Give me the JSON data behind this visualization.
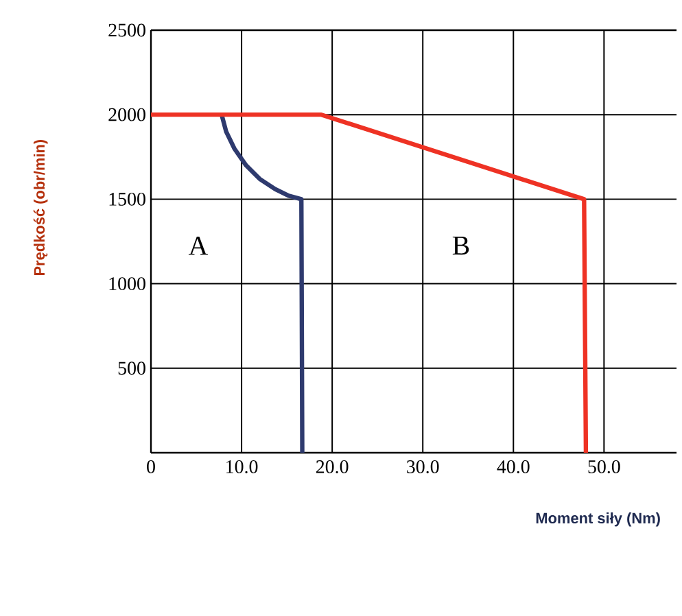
{
  "chart_data": {
    "type": "line",
    "xlabel": "Moment siły (Nm)",
    "ylabel": "Prędkość (obr/min)",
    "xlim": [
      0,
      58
    ],
    "ylim": [
      0,
      2500
    ],
    "xticks": [
      0,
      {
        "value": 10,
        "label": "10.0"
      },
      {
        "value": 20,
        "label": "20.0"
      },
      {
        "value": 30,
        "label": "30.0"
      },
      {
        "value": 40,
        "label": "40.0"
      },
      {
        "value": 50,
        "label": "50.0"
      }
    ],
    "yticks": [
      500,
      1000,
      1500,
      2000,
      2500
    ],
    "grid": true,
    "marker": "none",
    "line_style": "solid",
    "series": [
      {
        "color": "#2e3a6e",
        "x": [
          7.8,
          8.3,
          9.2,
          10.5,
          12.0,
          13.7,
          15.2,
          16.6,
          16.7
        ],
        "values": [
          2000,
          1900,
          1800,
          1700,
          1620,
          1560,
          1520,
          1500,
          0
        ]
      },
      {
        "color": "#ee3224",
        "x": [
          0,
          18.8,
          47.8,
          48.0
        ],
        "values": [
          2000,
          2000,
          1500,
          0
        ]
      }
    ],
    "annotations": [
      "A",
      "B"
    ]
  }
}
